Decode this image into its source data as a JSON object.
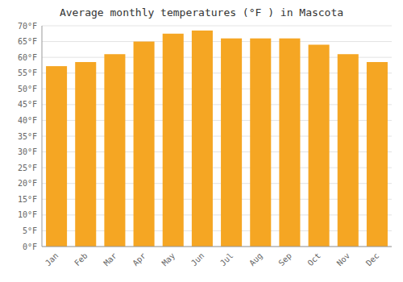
{
  "chart_data": {
    "type": "bar",
    "title": "Average monthly temperatures (°F ) in Mascota",
    "categories": [
      "Jan",
      "Feb",
      "Mar",
      "Apr",
      "May",
      "Jun",
      "Jul",
      "Aug",
      "Sep",
      "Oct",
      "Nov",
      "Dec"
    ],
    "values": [
      57.2,
      58.5,
      61.0,
      65.0,
      67.5,
      68.5,
      66.0,
      66.0,
      66.0,
      64.0,
      61.0,
      58.5
    ],
    "color": "#F5A623",
    "ylim": [
      0,
      70
    ],
    "yticks": [
      {
        "value": 0,
        "label": "0°F"
      },
      {
        "value": 5,
        "label": "5°F"
      },
      {
        "value": 10,
        "label": "10°F"
      },
      {
        "value": 15,
        "label": "15°F"
      },
      {
        "value": 20,
        "label": "20°F"
      },
      {
        "value": 25,
        "label": "25°F"
      },
      {
        "value": 30,
        "label": "30°F"
      },
      {
        "value": 35,
        "label": "35°F"
      },
      {
        "value": 40,
        "label": "40°F"
      },
      {
        "value": 45,
        "label": "45°F"
      },
      {
        "value": 50,
        "label": "50°F"
      },
      {
        "value": 55,
        "label": "55°F"
      },
      {
        "value": 60,
        "label": "60°F"
      },
      {
        "value": 65,
        "label": "65°F"
      },
      {
        "value": 70,
        "label": "70°F"
      }
    ],
    "grid": true
  }
}
